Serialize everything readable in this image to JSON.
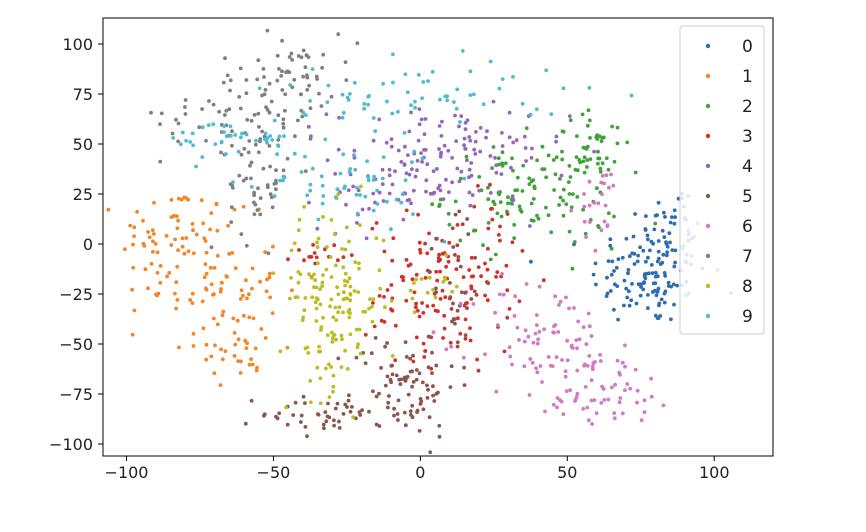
{
  "chart_data": {
    "type": "scatter",
    "title": "",
    "xlabel": "",
    "ylabel": "",
    "xlim": [
      -108,
      120
    ],
    "ylim": [
      -106,
      113
    ],
    "xticks": [
      -100,
      -50,
      0,
      50,
      100
    ],
    "yticks": [
      100,
      75,
      50,
      25,
      0,
      -25,
      -50,
      -75,
      -100
    ],
    "xtick_labels": [
      "−100",
      "−50",
      "0",
      "50",
      "100"
    ],
    "ytick_labels": [
      "100",
      "75",
      "50",
      "25",
      "0",
      "−25",
      "−50",
      "−75",
      "−100"
    ],
    "grid": false,
    "legend_position": "top-right",
    "points_per_cluster": 160,
    "series": [
      {
        "name": "0",
        "color": "#2f6db0",
        "blobs": [
          [
            78,
            -15,
            10,
            13,
            0.8
          ],
          [
            86,
            12,
            6,
            10,
            0.2
          ]
        ]
      },
      {
        "name": "1",
        "color": "#f28526",
        "blobs": [
          [
            -84,
            5,
            9,
            12,
            0.35
          ],
          [
            -70,
            -20,
            11,
            16,
            0.45
          ],
          [
            -62,
            -52,
            8,
            8,
            0.2
          ]
        ]
      },
      {
        "name": "2",
        "color": "#41a13a",
        "blobs": [
          [
            38,
            25,
            15,
            13,
            0.8
          ],
          [
            60,
            50,
            7,
            8,
            0.2
          ]
        ]
      },
      {
        "name": "3",
        "color": "#d3302a",
        "blobs": [
          [
            0,
            -25,
            9,
            20,
            0.45
          ],
          [
            18,
            -15,
            8,
            22,
            0.45
          ],
          [
            -35,
            -5,
            4,
            3,
            0.1
          ]
        ]
      },
      {
        "name": "4",
        "color": "#9467bd",
        "blobs": [
          [
            10,
            45,
            20,
            12,
            0.7
          ],
          [
            -10,
            25,
            12,
            9,
            0.3
          ]
        ]
      },
      {
        "name": "5",
        "color": "#8c564b",
        "blobs": [
          [
            -5,
            -70,
            9,
            13,
            0.5
          ],
          [
            -30,
            -85,
            12,
            5,
            0.3
          ],
          [
            12,
            -15,
            5,
            20,
            0.2
          ]
        ]
      },
      {
        "name": "6",
        "color": "#d378c3",
        "blobs": [
          [
            42,
            -48,
            12,
            16,
            0.45
          ],
          [
            60,
            -72,
            14,
            10,
            0.4
          ],
          [
            62,
            18,
            4,
            10,
            0.15
          ]
        ]
      },
      {
        "name": "7",
        "color": "#7f7f7f",
        "blobs": [
          [
            -60,
            65,
            14,
            10,
            0.35
          ],
          [
            -45,
            85,
            12,
            10,
            0.35
          ],
          [
            -55,
            30,
            5,
            15,
            0.3
          ]
        ]
      },
      {
        "name": "8",
        "color": "#bcbd22",
        "blobs": [
          [
            -30,
            -28,
            9,
            22,
            0.9
          ],
          [
            5,
            -20,
            5,
            8,
            0.1
          ]
        ]
      },
      {
        "name": "9",
        "color": "#4ebcd0",
        "blobs": [
          [
            -25,
            30,
            16,
            10,
            0.35
          ],
          [
            0,
            75,
            25,
            9,
            0.4
          ],
          [
            -60,
            52,
            14,
            5,
            0.25
          ]
        ]
      }
    ]
  }
}
